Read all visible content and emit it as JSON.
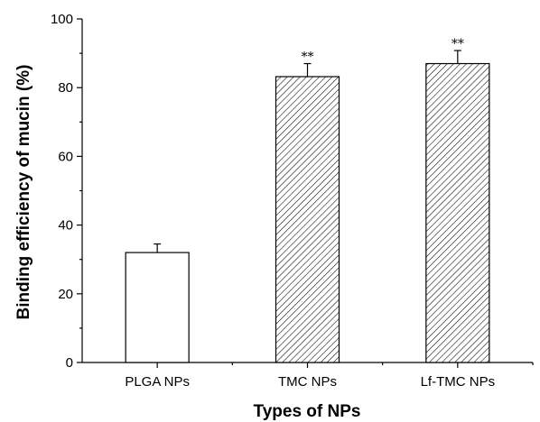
{
  "chart_data": {
    "type": "bar",
    "categories": [
      "PLGA NPs",
      "TMC NPs",
      "Lf-TMC NPs"
    ],
    "values": [
      32.0,
      83.2,
      87.0
    ],
    "errors": [
      2.5,
      3.8,
      3.8
    ],
    "significance": [
      "",
      "**",
      "**"
    ],
    "fills": [
      "plain",
      "hatched",
      "hatched"
    ],
    "xlabel": "Types of NPs",
    "ylabel": "Binding efficiency of mucin (%)",
    "ylim": [
      0,
      100
    ],
    "yticks": [
      0,
      20,
      40,
      60,
      80,
      100
    ],
    "grid": false,
    "legend": "none",
    "colors": {
      "bar_edge": "#000000",
      "plain_fill": "#ffffff",
      "hatch": "#000000"
    }
  }
}
